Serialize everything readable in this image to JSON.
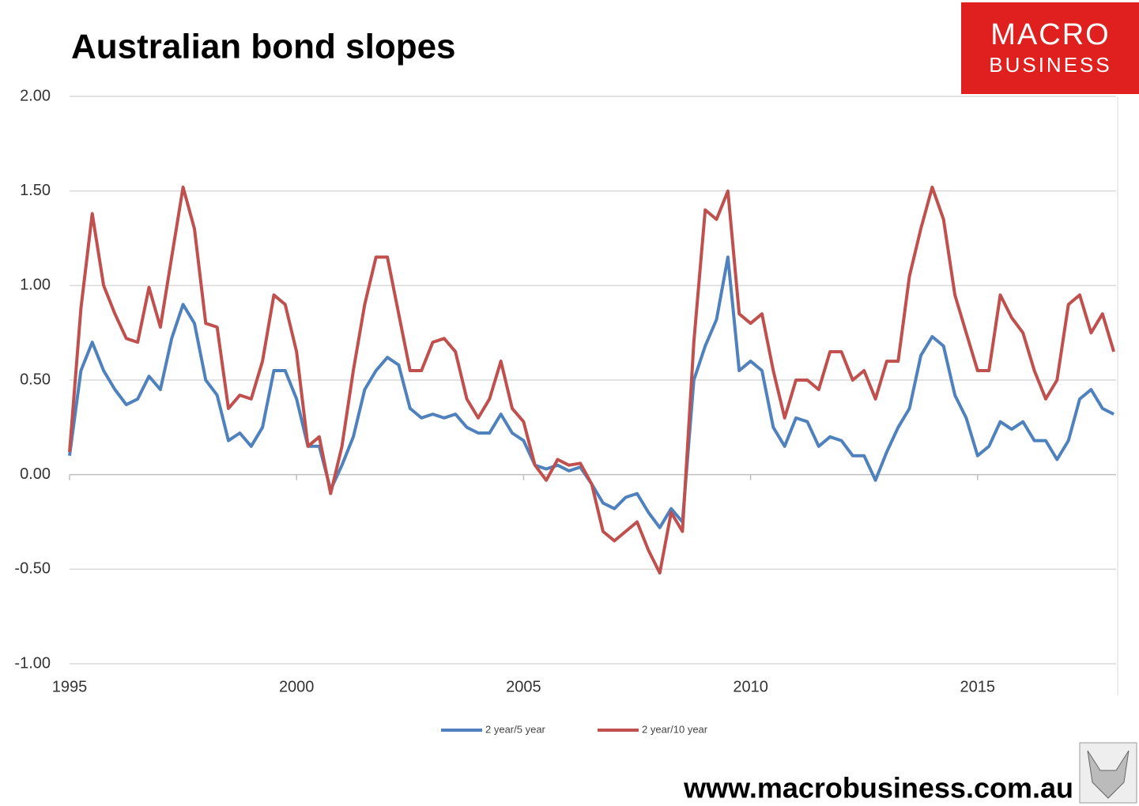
{
  "chart_data": {
    "type": "line",
    "title": "Australian bond slopes",
    "x": [
      1995,
      1995.25,
      1995.5,
      1995.75,
      1996,
      1996.25,
      1996.5,
      1996.75,
      1997,
      1997.25,
      1997.5,
      1997.75,
      1998,
      1998.25,
      1998.5,
      1998.75,
      1999,
      1999.25,
      1999.5,
      1999.75,
      2000,
      2000.25,
      2000.5,
      2000.75,
      2001,
      2001.25,
      2001.5,
      2001.75,
      2002,
      2002.25,
      2002.5,
      2002.75,
      2003,
      2003.25,
      2003.5,
      2003.75,
      2004,
      2004.25,
      2004.5,
      2004.75,
      2005,
      2005.25,
      2005.5,
      2005.75,
      2006,
      2006.25,
      2006.5,
      2006.75,
      2007,
      2007.25,
      2007.5,
      2007.75,
      2008,
      2008.25,
      2008.5,
      2008.75,
      2009,
      2009.25,
      2009.5,
      2009.75,
      2010,
      2010.25,
      2010.5,
      2010.75,
      2011,
      2011.25,
      2011.5,
      2011.75,
      2012,
      2012.25,
      2012.5,
      2012.75,
      2013,
      2013.25,
      2013.5,
      2013.75,
      2014,
      2014.25,
      2014.5,
      2014.75,
      2015,
      2015.25,
      2015.5,
      2015.75,
      2016,
      2016.25,
      2016.5,
      2016.75,
      2017,
      2017.25,
      2017.5,
      2017.75,
      2018
    ],
    "series": [
      {
        "name": "2 year/5 year",
        "color": "#4f81bd",
        "values": [
          0.1,
          0.55,
          0.7,
          0.55,
          0.45,
          0.37,
          0.4,
          0.52,
          0.45,
          0.72,
          0.9,
          0.8,
          0.5,
          0.42,
          0.18,
          0.22,
          0.15,
          0.25,
          0.55,
          0.55,
          0.4,
          0.15,
          0.15,
          -0.08,
          0.05,
          0.2,
          0.45,
          0.55,
          0.62,
          0.58,
          0.35,
          0.3,
          0.32,
          0.3,
          0.32,
          0.25,
          0.22,
          0.22,
          0.32,
          0.22,
          0.18,
          0.05,
          0.03,
          0.05,
          0.02,
          0.04,
          -0.05,
          -0.15,
          -0.18,
          -0.12,
          -0.1,
          -0.2,
          -0.28,
          -0.18,
          -0.25,
          0.5,
          0.68,
          0.82,
          1.15,
          0.55,
          0.6,
          0.55,
          0.25,
          0.15,
          0.3,
          0.28,
          0.15,
          0.2,
          0.18,
          0.1,
          0.1,
          -0.03,
          0.12,
          0.25,
          0.35,
          0.63,
          0.73,
          0.68,
          0.42,
          0.3,
          0.1,
          0.15,
          0.28,
          0.24,
          0.28,
          0.18,
          0.18,
          0.08,
          0.18,
          0.4,
          0.45,
          0.35,
          0.32
        ]
      },
      {
        "name": "2 year/10 year",
        "color": "#c0504d",
        "values": [
          0.12,
          0.88,
          1.38,
          1.0,
          0.85,
          0.72,
          0.7,
          0.99,
          0.78,
          1.15,
          1.52,
          1.3,
          0.8,
          0.78,
          0.35,
          0.42,
          0.4,
          0.6,
          0.95,
          0.9,
          0.65,
          0.15,
          0.2,
          -0.1,
          0.15,
          0.55,
          0.9,
          1.15,
          1.15,
          0.85,
          0.55,
          0.55,
          0.7,
          0.72,
          0.65,
          0.4,
          0.3,
          0.4,
          0.6,
          0.35,
          0.28,
          0.05,
          -0.03,
          0.08,
          0.05,
          0.06,
          -0.05,
          -0.3,
          -0.35,
          -0.3,
          -0.25,
          -0.4,
          -0.52,
          -0.2,
          -0.3,
          0.7,
          1.4,
          1.35,
          1.5,
          0.85,
          0.8,
          0.85,
          0.55,
          0.3,
          0.5,
          0.5,
          0.45,
          0.65,
          0.65,
          0.5,
          0.55,
          0.4,
          0.6,
          0.6,
          1.05,
          1.3,
          1.52,
          1.35,
          0.95,
          0.75,
          0.55,
          0.55,
          0.95,
          0.83,
          0.75,
          0.55,
          0.4,
          0.5,
          0.9,
          0.95,
          0.75,
          0.85,
          0.65
        ]
      }
    ],
    "xlim": [
      1995,
      2018.05
    ],
    "xticks": [
      1995,
      2000,
      2005,
      2010,
      2015
    ],
    "ylim": [
      -1,
      2
    ],
    "yticks": [
      {
        "value": -1,
        "label": "-1.00"
      },
      {
        "value": -0.5,
        "label": "-0.50"
      },
      {
        "value": 0,
        "label": "0.00"
      },
      {
        "value": 0.5,
        "label": "0.50"
      },
      {
        "value": 1,
        "label": "1.00"
      },
      {
        "value": 1.5,
        "label": "1.50"
      },
      {
        "value": 2,
        "label": "2.00"
      }
    ],
    "grid": true,
    "legend": "bottom"
  },
  "brand": {
    "logo_top": "MACRO",
    "logo_bottom": "BUSINESS",
    "url": "www.macrobusiness.com.au"
  }
}
